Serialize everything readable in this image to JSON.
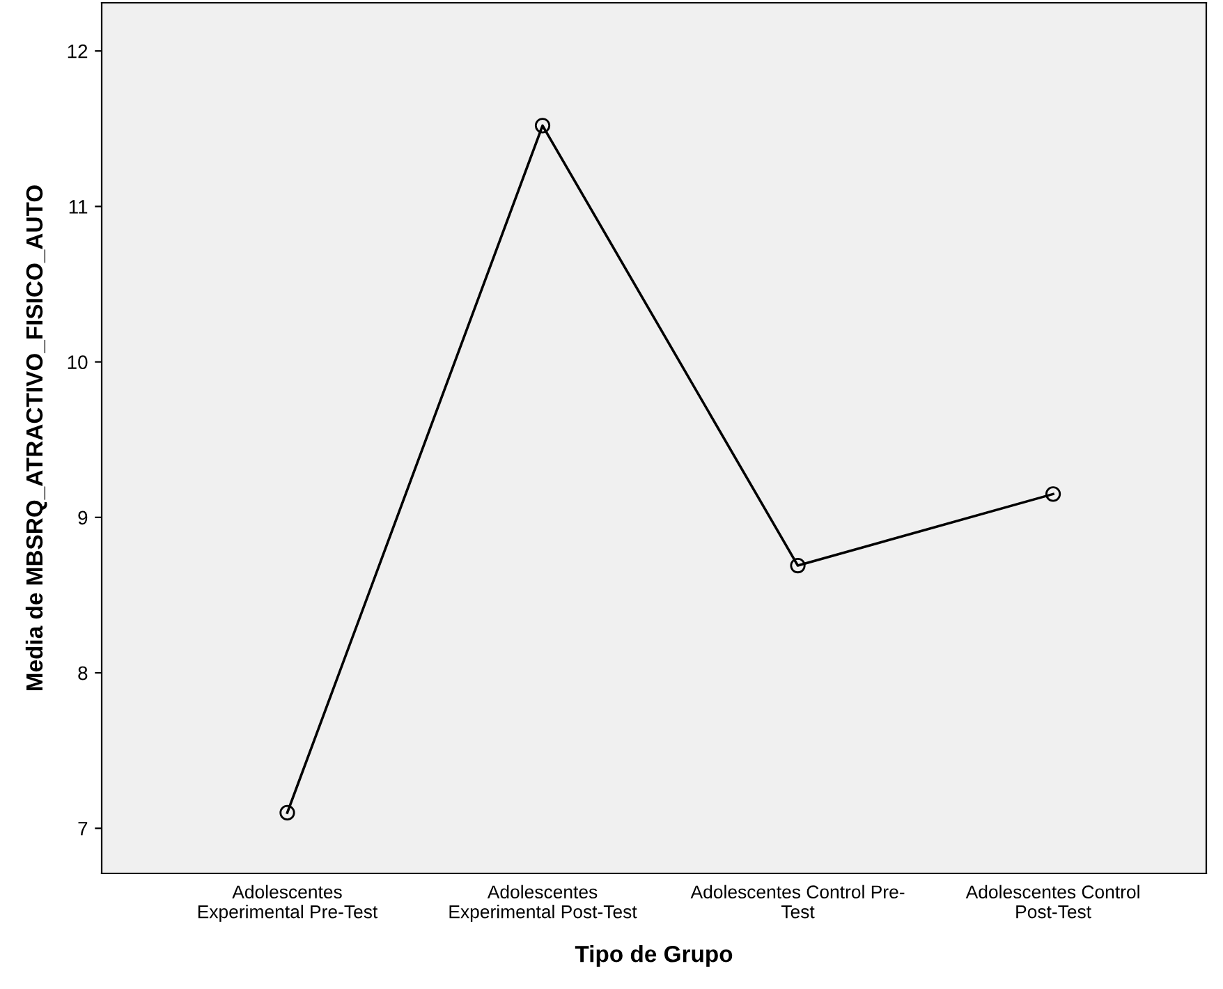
{
  "chart_data": {
    "type": "line",
    "xlabel": "Tipo de Grupo",
    "ylabel": "Media de MBSRQ_ATRACTIVO_FISICO_AUTO",
    "categories": [
      "Adolescentes\nExperimental Pre-Test",
      "Adolescentes\nExperimental Post-Test",
      "Adolescentes Control Pre-\nTest",
      "Adolescentes Control\nPost-Test"
    ],
    "series": [
      {
        "color": "#000000",
        "values": [
          7.1,
          11.52,
          8.69,
          9.15
        ]
      }
    ],
    "ylim": [
      6.71,
      12.31
    ],
    "yticks": [
      7,
      8,
      9,
      10,
      11,
      12
    ],
    "marker": "circle",
    "line_style": "solid",
    "grid": false,
    "legend": false
  }
}
